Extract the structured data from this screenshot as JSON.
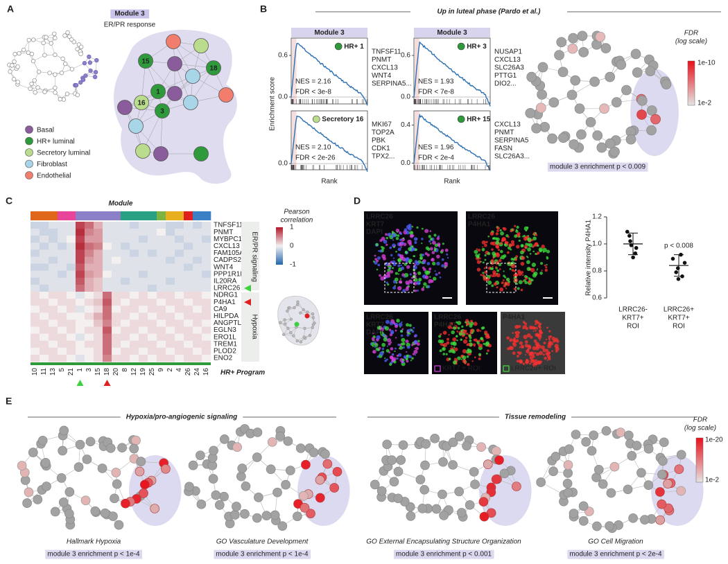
{
  "panel_a": {
    "label": "A",
    "module_title": "Module 3",
    "module_subtitle": "ER/PR response",
    "node_labels": [
      "15",
      "18",
      "1",
      "16",
      "3"
    ],
    "legend": [
      {
        "name": "Basal",
        "color": "#8a5c9c"
      },
      {
        "name": "HR+ luminal",
        "color": "#2f9a3c"
      },
      {
        "name": "Secretory luminal",
        "color": "#b9dc8d"
      },
      {
        "name": "Fibroblast",
        "color": "#a9d5e8"
      },
      {
        "name": "Endothelial",
        "color": "#f27d6c"
      }
    ]
  },
  "panel_b": {
    "label": "B",
    "title": "Up in luteal phase (Pardo et al.)",
    "y_label": "Enrichment score",
    "x_label": "Rank",
    "plots": [
      {
        "header": "Module 3",
        "set": "HR+ 1",
        "set_color": "#2f9a3c",
        "nes": "NES = 2.16",
        "fdr": "FDR < 3e-8",
        "genes": [
          "TNFSF11",
          "PNMT",
          "CXCL13",
          "WNT4",
          "SERPINA5..."
        ],
        "ylim": [
          -0.1,
          0.85
        ],
        "yticks": [
          0.6,
          {
            "value": 0,
            "label": "0.0"
          }
        ]
      },
      {
        "header": "Module 3",
        "set": "HR+ 3",
        "set_color": "#2f9a3c",
        "nes": "NES = 1.93",
        "fdr": "FDR < 7e-8",
        "genes": [
          "NUSAP1",
          "CXCL13",
          "SLC26A3",
          "PTTG1",
          "DIO2..."
        ],
        "ylim": [
          -0.1,
          0.85
        ],
        "yticks": [
          0.6,
          {
            "value": 0,
            "label": "0.0"
          }
        ]
      },
      {
        "set": "Secretory 16",
        "set_color": "#b9dc8d",
        "nes": "NES = 2.10",
        "fdr": "FDR < 2e-26",
        "genes": [
          "MKI67",
          "TOP2A",
          "PBK",
          "CDK1",
          "TPX2..."
        ],
        "ylim": [
          -0.1,
          0.85
        ],
        "yticks": [
          {
            "value": 0,
            "label": "0.0"
          }
        ]
      },
      {
        "set": "HR+ 15",
        "set_color": "#2f9a3c",
        "nes": "NES = 1.96",
        "fdr": "FDR < 2e-4",
        "genes": [
          "CXCL13",
          "PNMT",
          "SERPINA5",
          "FASN",
          "SLC26A3..."
        ],
        "ylim": [
          -0.07,
          0.55
        ],
        "yticks": [
          0.4,
          {
            "value": 0,
            "label": "0.0"
          }
        ]
      }
    ],
    "network": {
      "legend_title": "FDR",
      "legend_subtitle": "(log scale)",
      "legend_high": "1e-10",
      "legend_low": "1e-2",
      "caption": "module 3 enrichment p < 0.009"
    }
  },
  "panel_c": {
    "label": "C",
    "module_title": "Module",
    "legend_title": "Pearson",
    "legend_subtitle": "correlation",
    "clim": [
      -1,
      1
    ],
    "legend_ticks": [
      1,
      0,
      -1
    ],
    "genes": [
      "TNFSF11",
      "PNMT",
      "MYBPC1",
      "CXCL13",
      "FAM105A",
      "CADPS2",
      "WNT4",
      "PPP1R1B",
      "IL20RA",
      "LRRC26",
      "NDRG1",
      "P4HA1",
      "CA9",
      "HILPDA",
      "ANGPTL4",
      "EGLN3",
      "ERO1L",
      "TREM1",
      "PLOD2",
      "ENO2"
    ],
    "groups": [
      "ER/PR signaling",
      "Hypoxia"
    ],
    "columns": [
      "10",
      "11",
      "13",
      "5",
      "21",
      "1",
      "3",
      "15",
      "18",
      "20",
      "8",
      "12",
      "19",
      "25",
      "9",
      "2",
      "4",
      "26",
      "24",
      "16"
    ],
    "program_title": "HR+ Program",
    "module_colors": [
      "#e0661c",
      "#e0661c",
      "#e0661c",
      "#e8449a",
      "#e8449a",
      "#8b7fc8",
      "#8b7fc8",
      "#8b7fc8",
      "#8b7fc8",
      "#8b7fc8",
      "#2aa082",
      "#2aa082",
      "#2aa082",
      "#2aa082",
      "#7cb342",
      "#e8b020",
      "#e8b020",
      "#e02020",
      "#3b7fc4",
      "#3b7fc4"
    ],
    "values": [
      [
        -0.2,
        -0.2,
        -0.1,
        -0.1,
        -0.1,
        0.8,
        0.6,
        0.3,
        -0.1,
        -0.1,
        -0.1,
        -0.2,
        -0.1,
        -0.1,
        -0.1,
        -0.2,
        -0.2,
        -0.1,
        -0.2,
        -0.1
      ],
      [
        -0.1,
        -0.2,
        -0.2,
        -0.1,
        -0.1,
        0.9,
        0.5,
        0.4,
        -0.1,
        -0.1,
        -0.1,
        -0.1,
        -0.1,
        -0.1,
        0.0,
        -0.2,
        -0.1,
        -0.1,
        -0.1,
        -0.1
      ],
      [
        -0.2,
        -0.1,
        -0.2,
        -0.1,
        0.0,
        0.8,
        0.4,
        0.4,
        -0.1,
        -0.1,
        -0.1,
        -0.1,
        -0.2,
        -0.1,
        -0.1,
        -0.1,
        -0.2,
        -0.1,
        -0.1,
        -0.2
      ],
      [
        -0.1,
        -0.2,
        -0.1,
        -0.2,
        -0.1,
        0.9,
        0.6,
        0.5,
        0.0,
        -0.1,
        -0.2,
        -0.1,
        -0.1,
        -0.1,
        -0.1,
        -0.1,
        -0.1,
        -0.2,
        -0.1,
        -0.1
      ],
      [
        -0.2,
        -0.1,
        -0.1,
        -0.1,
        -0.1,
        0.8,
        0.5,
        0.3,
        -0.1,
        -0.1,
        -0.1,
        -0.2,
        -0.1,
        -0.2,
        -0.1,
        -0.1,
        -0.2,
        -0.1,
        -0.1,
        -0.1
      ],
      [
        -0.1,
        -0.1,
        -0.2,
        -0.1,
        -0.1,
        0.8,
        0.4,
        0.3,
        -0.1,
        0.0,
        -0.1,
        -0.1,
        -0.1,
        -0.1,
        -0.1,
        -0.2,
        -0.1,
        -0.1,
        -0.2,
        -0.1
      ],
      [
        -0.2,
        -0.2,
        -0.1,
        -0.1,
        -0.2,
        0.7,
        0.3,
        0.3,
        -0.1,
        -0.1,
        -0.1,
        -0.1,
        -0.1,
        -0.1,
        -0.1,
        -0.1,
        -0.1,
        -0.2,
        -0.1,
        -0.1
      ],
      [
        -0.1,
        -0.1,
        -0.1,
        -0.2,
        -0.1,
        0.8,
        0.4,
        0.3,
        0.0,
        -0.1,
        -0.1,
        -0.1,
        -0.2,
        -0.1,
        -0.1,
        -0.1,
        -0.1,
        -0.1,
        -0.1,
        -0.2
      ],
      [
        -0.2,
        -0.1,
        -0.1,
        -0.1,
        -0.1,
        0.7,
        0.3,
        0.2,
        -0.1,
        -0.1,
        -0.2,
        -0.1,
        -0.1,
        -0.1,
        -0.1,
        -0.2,
        -0.1,
        -0.1,
        -0.1,
        -0.1
      ],
      [
        -0.1,
        -0.2,
        -0.1,
        -0.1,
        -0.1,
        0.6,
        0.3,
        0.2,
        -0.1,
        -0.1,
        -0.1,
        -0.1,
        -0.1,
        -0.2,
        -0.1,
        -0.1,
        -0.1,
        -0.1,
        -0.1,
        -0.1
      ],
      [
        0.1,
        0.0,
        0.1,
        0.1,
        0.0,
        -0.1,
        0.0,
        0.1,
        0.6,
        0.1,
        0.1,
        0.0,
        0.1,
        0.0,
        0.1,
        0.1,
        0.0,
        0.1,
        0.1,
        0.0
      ],
      [
        0.1,
        0.1,
        0.0,
        0.1,
        0.1,
        0.0,
        0.1,
        0.2,
        0.7,
        0.1,
        0.0,
        0.1,
        0.1,
        0.1,
        0.0,
        0.1,
        0.1,
        0.0,
        0.1,
        0.1
      ],
      [
        0.0,
        0.1,
        0.1,
        0.0,
        0.1,
        -0.1,
        0.0,
        0.1,
        0.6,
        0.0,
        0.1,
        0.1,
        0.0,
        0.1,
        0.1,
        0.0,
        0.1,
        0.1,
        0.0,
        0.1
      ],
      [
        0.1,
        0.0,
        0.1,
        0.1,
        0.0,
        0.0,
        0.1,
        0.3,
        0.6,
        0.1,
        0.1,
        0.0,
        0.1,
        0.0,
        0.1,
        0.1,
        0.0,
        0.1,
        0.1,
        0.1
      ],
      [
        0.1,
        0.1,
        0.0,
        0.1,
        0.1,
        0.0,
        0.0,
        0.2,
        0.5,
        0.1,
        0.0,
        0.1,
        0.1,
        0.1,
        0.0,
        0.1,
        0.1,
        0.0,
        0.1,
        0.0
      ],
      [
        0.0,
        0.1,
        0.1,
        0.0,
        0.1,
        0.0,
        0.1,
        0.1,
        0.7,
        0.0,
        0.1,
        0.1,
        0.0,
        0.1,
        0.1,
        0.0,
        0.1,
        0.1,
        0.0,
        0.1
      ],
      [
        0.1,
        0.0,
        0.1,
        0.1,
        0.0,
        -0.1,
        0.0,
        0.1,
        0.6,
        0.1,
        0.1,
        0.0,
        0.1,
        0.0,
        0.1,
        0.1,
        0.0,
        0.1,
        0.1,
        0.0
      ],
      [
        0.1,
        0.1,
        0.0,
        0.1,
        0.1,
        0.0,
        0.1,
        0.1,
        0.6,
        0.1,
        0.0,
        0.1,
        0.1,
        0.1,
        0.0,
        0.1,
        0.1,
        0.0,
        0.1,
        0.1
      ],
      [
        0.0,
        0.1,
        0.1,
        0.0,
        0.1,
        0.0,
        0.0,
        0.1,
        0.6,
        0.0,
        0.1,
        0.1,
        0.0,
        0.1,
        0.1,
        0.0,
        0.1,
        0.1,
        0.0,
        0.1
      ],
      [
        0.1,
        0.0,
        0.1,
        0.1,
        0.0,
        -0.1,
        0.0,
        0.1,
        0.5,
        0.1,
        0.1,
        0.0,
        0.1,
        0.0,
        0.1,
        0.1,
        0.0,
        0.1,
        0.1,
        0.0
      ]
    ]
  },
  "panel_d": {
    "label": "D",
    "images": [
      {
        "channels": [
          {
            "text": "LRRC26",
            "color": "#3fe03f"
          },
          {
            "text": "KRT7",
            "color": "#e040e0"
          },
          {
            "text": "DAPI",
            "color": "#5060ff"
          }
        ]
      },
      {
        "channels": [
          {
            "text": "LRRC26",
            "color": "#3fe03f"
          },
          {
            "text": "P4HA1",
            "color": "#ff3030"
          }
        ]
      },
      {
        "channels": [
          {
            "text": "LRRC26",
            "color": "#3fe03f"
          },
          {
            "text": "KRT7",
            "color": "#e040e0"
          },
          {
            "text": "DAPI",
            "color": "#5060ff"
          }
        ]
      },
      {
        "channels": [
          {
            "text": "LRRC26",
            "color": "#3fe03f"
          },
          {
            "text": "P4HA1",
            "color": "#ff3030"
          }
        ]
      },
      {
        "channels": [
          {
            "text": "P4HA1",
            "color": "#ff3030"
          }
        ]
      }
    ],
    "roi_labels": [
      {
        "text": "KRT7 + ROI",
        "color": "#e040e0"
      },
      {
        "text": "LRRC26+ ROI",
        "color": "#3fe03f"
      }
    ],
    "chart": {
      "type": "dot",
      "y_label": "Relative intensity P4HA1",
      "ylim": [
        0.6,
        1.2
      ],
      "yticks": [
        0.6,
        0.8,
        {
          "value": 1,
          "label": "1.0"
        },
        1.2
      ],
      "categories": [
        [
          "LRRC26-",
          "KRT7+",
          "ROI"
        ],
        [
          "LRRC26+",
          "KRT7+",
          "ROI"
        ]
      ],
      "values": [
        [
          1.09,
          1.06,
          1.02,
          0.99,
          0.97,
          0.93,
          0.9
        ],
        [
          0.92,
          0.89,
          0.86,
          0.82,
          0.79,
          0.76,
          0.74
        ]
      ],
      "means": [
        1.0,
        0.84
      ],
      "errors": [
        0.08,
        0.08
      ],
      "annotation": "p < 0.008"
    }
  },
  "panel_e": {
    "label": "E",
    "group_titles": [
      "Hypoxia/pro-angiogenic signaling",
      "Tissue remodeling"
    ],
    "networks": [
      {
        "title": "Hallmark Hypoxia",
        "caption": "module 3 enrichment p < 1e-4"
      },
      {
        "title": "GO Vasculature Development",
        "caption": "module 3 enrichment p < 1e-4"
      },
      {
        "title": "GO External Encapsulating Structure Organization",
        "caption": "module 3 enrichment p < 0.001"
      },
      {
        "title": "GO Cell Migration",
        "caption": "module 3 enrichment p < 2e-4"
      }
    ],
    "legend_title": "FDR",
    "legend_subtitle": "(log scale)",
    "legend_high": "1e-20",
    "legend_low": "1e-2"
  }
}
